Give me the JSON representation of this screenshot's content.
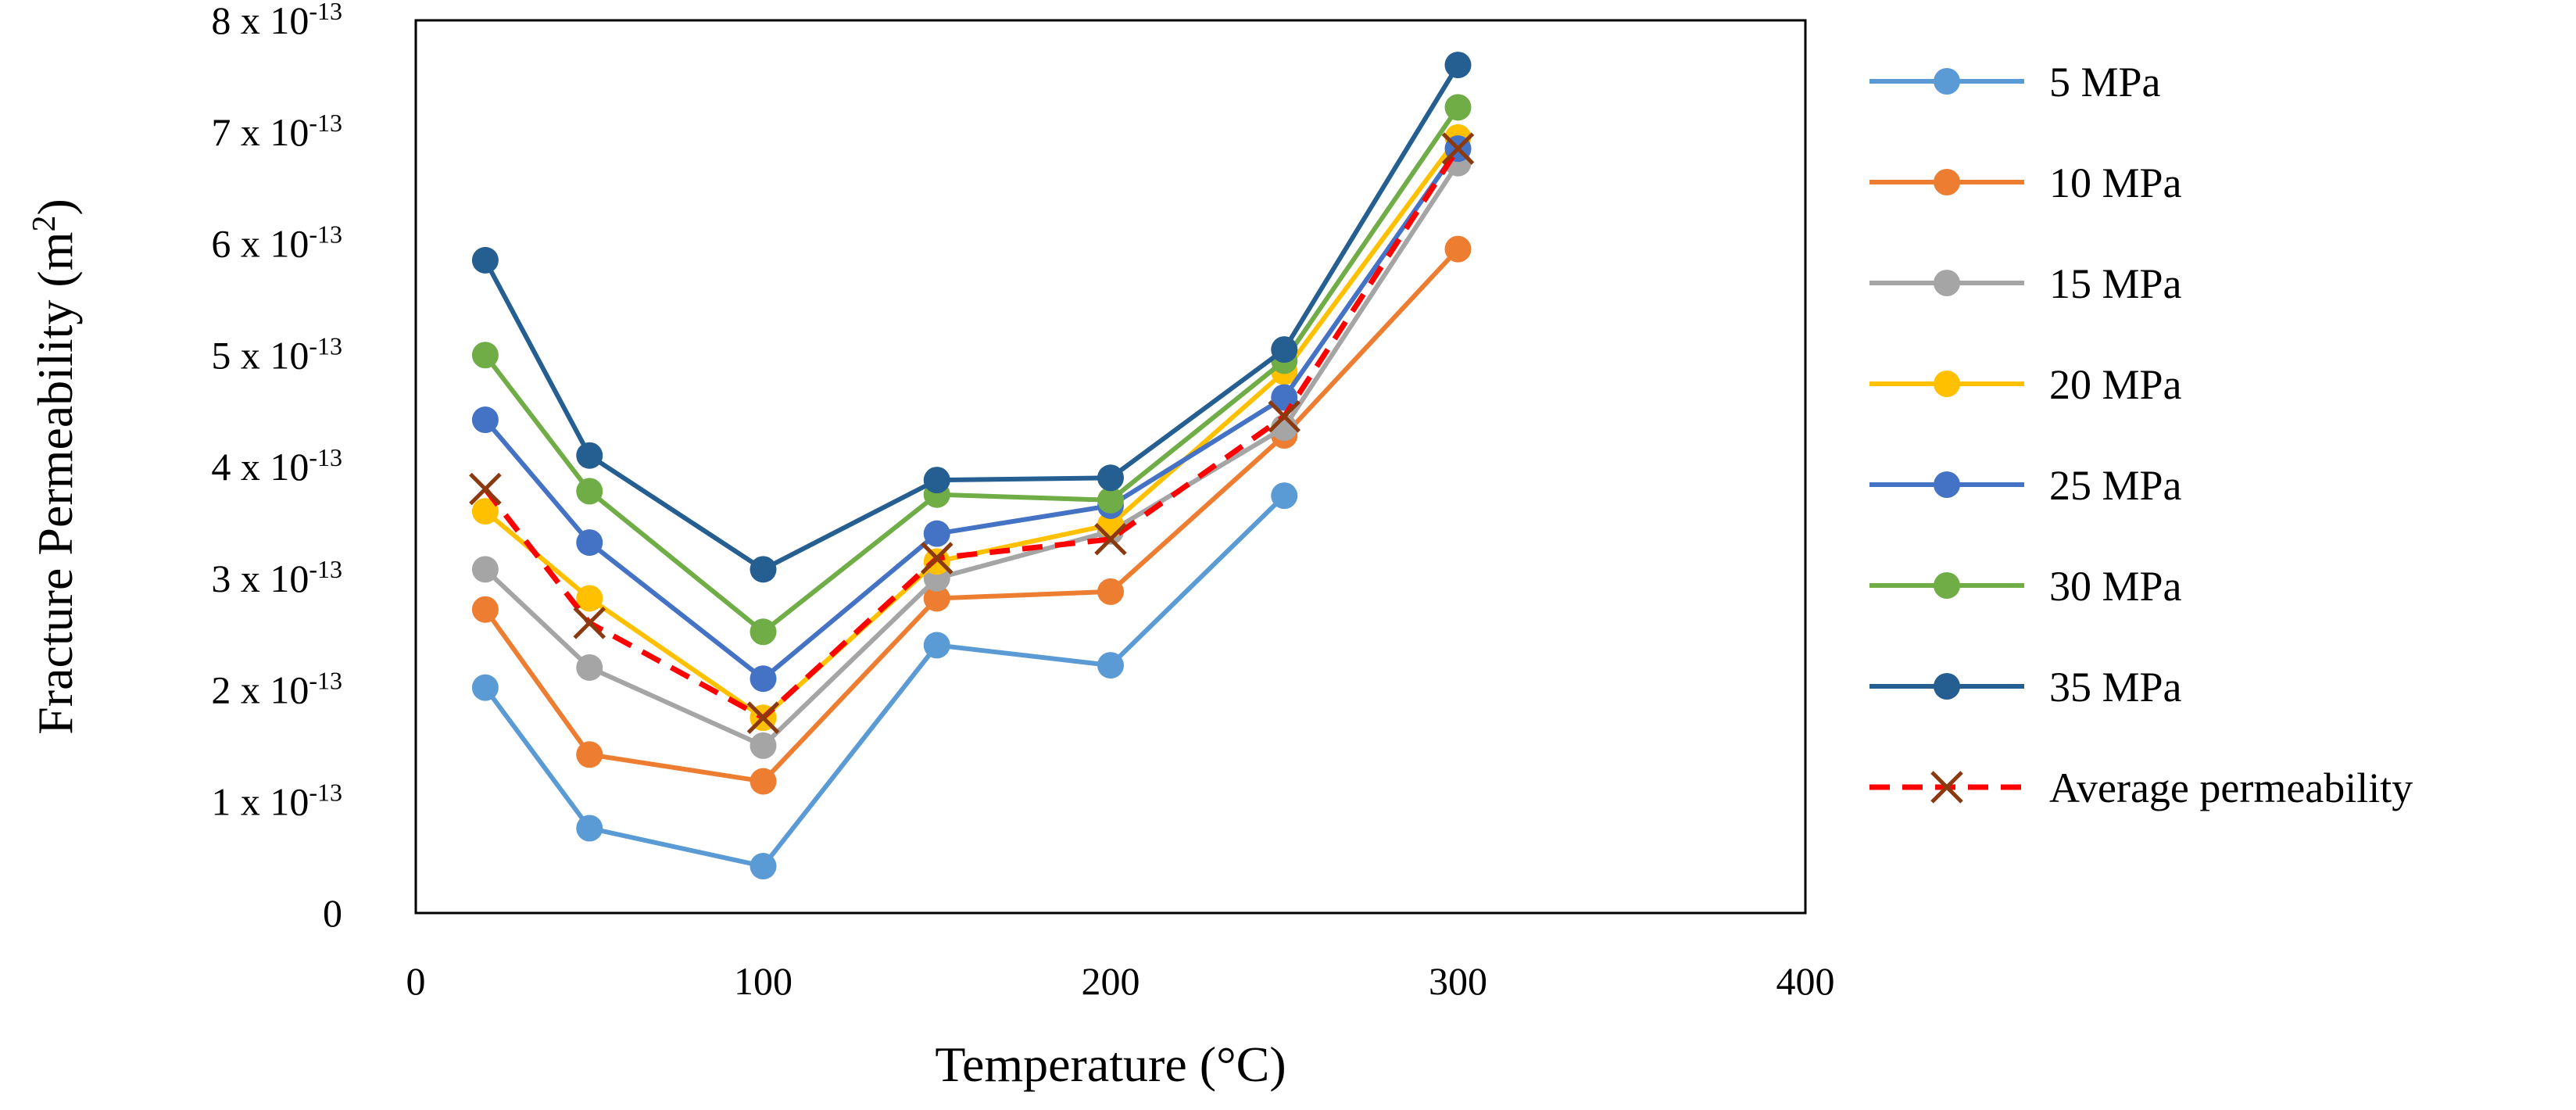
{
  "chart_data": {
    "type": "line",
    "title": "",
    "xlabel": "Temperature (°C)",
    "ylabel": {
      "text": "Fracture Permeability (m",
      "sup": "2",
      "close": ")"
    },
    "xlim": [
      0,
      400
    ],
    "ylim": [
      0,
      8
    ],
    "x_ticks": [
      {
        "value": 0,
        "label": "0"
      },
      {
        "value": 100,
        "label": "100"
      },
      {
        "value": 200,
        "label": "200"
      },
      {
        "value": 300,
        "label": "300"
      },
      {
        "value": 400,
        "label": "400"
      }
    ],
    "y_ticks": [
      {
        "value": 0,
        "label": "0",
        "exp": ""
      },
      {
        "value": 1,
        "label": "1 x 10",
        "exp": "-13"
      },
      {
        "value": 2,
        "label": "2 x 10",
        "exp": "-13"
      },
      {
        "value": 3,
        "label": "3 x 10",
        "exp": "-13"
      },
      {
        "value": 4,
        "label": "4 x 10",
        "exp": "-13"
      },
      {
        "value": 5,
        "label": "5 x 10",
        "exp": "-13"
      },
      {
        "value": 6,
        "label": "6 x 10",
        "exp": "-13"
      },
      {
        "value": 7,
        "label": "7 x 10",
        "exp": "-13"
      },
      {
        "value": 8,
        "label": "8 x 10",
        "exp": "-13"
      }
    ],
    "y_unit_scale": "x 10^-13 m^2",
    "grid": false,
    "legend_position": "right",
    "series": [
      {
        "name": "5 MPa",
        "color": "#5B9BD5",
        "style": "solid",
        "marker": "circle",
        "x": [
          20,
          50,
          100,
          150,
          200,
          250
        ],
        "values": [
          2.02,
          0.76,
          0.42,
          2.4,
          2.22,
          3.74
        ]
      },
      {
        "name": "10 MPa",
        "color": "#ED7D31",
        "style": "solid",
        "marker": "circle",
        "x": [
          20,
          50,
          100,
          150,
          200,
          250,
          300
        ],
        "values": [
          2.72,
          1.42,
          1.18,
          2.82,
          2.88,
          4.28,
          5.95
        ]
      },
      {
        "name": "15 MPa",
        "color": "#A5A5A5",
        "style": "solid",
        "marker": "circle",
        "x": [
          20,
          50,
          100,
          150,
          200,
          250,
          300
        ],
        "values": [
          3.08,
          2.2,
          1.5,
          3.0,
          3.42,
          4.35,
          6.72
        ]
      },
      {
        "name": "20 MPa",
        "color": "#FFC000",
        "style": "solid",
        "marker": "circle",
        "x": [
          20,
          50,
          100,
          150,
          200,
          250,
          300
        ],
        "values": [
          3.6,
          2.82,
          1.75,
          3.15,
          3.48,
          4.85,
          6.95
        ]
      },
      {
        "name": "25 MPa",
        "color": "#4472C4",
        "style": "solid",
        "marker": "circle",
        "x": [
          20,
          50,
          100,
          150,
          200,
          250,
          300
        ],
        "values": [
          4.42,
          3.32,
          2.1,
          3.4,
          3.65,
          4.62,
          6.85
        ]
      },
      {
        "name": "30 MPa",
        "color": "#70AD47",
        "style": "solid",
        "marker": "circle",
        "x": [
          20,
          50,
          100,
          150,
          200,
          250,
          300
        ],
        "values": [
          5.0,
          3.78,
          2.52,
          3.75,
          3.7,
          4.95,
          7.22
        ]
      },
      {
        "name": "35 MPa",
        "color": "#255E91",
        "style": "solid",
        "marker": "circle",
        "x": [
          20,
          50,
          100,
          150,
          200,
          250,
          300
        ],
        "values": [
          5.85,
          4.1,
          3.08,
          3.88,
          3.9,
          5.05,
          7.6
        ]
      },
      {
        "name": "Average permeability",
        "color": "#FF0000",
        "marker_color": "#8B3A10",
        "style": "dashed",
        "marker": "x",
        "x": [
          20,
          50,
          100,
          150,
          200,
          250,
          300
        ],
        "values": [
          3.8,
          2.6,
          1.75,
          3.18,
          3.35,
          4.45,
          6.85
        ]
      }
    ]
  }
}
